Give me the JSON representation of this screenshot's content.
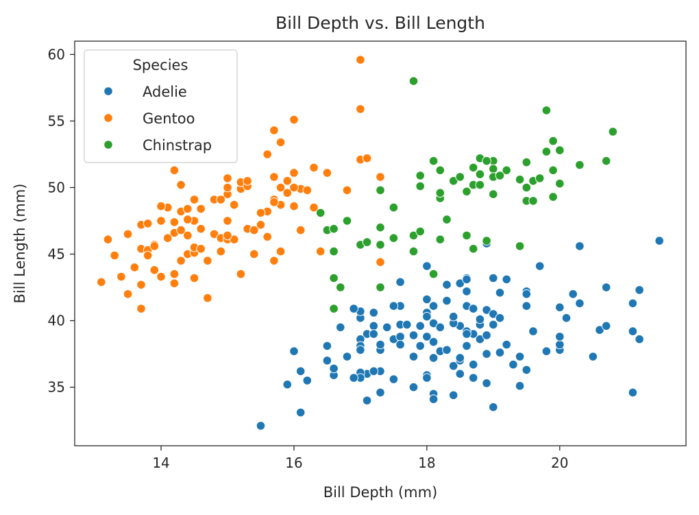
{
  "chart_data": {
    "type": "scatter",
    "title": "Bill Depth vs. Bill Length",
    "xlabel": "Bill Depth (mm)",
    "ylabel": "Bill Length (mm)",
    "xlim": [
      12.7,
      21.9
    ],
    "ylim": [
      30.6,
      61.0
    ],
    "xticks": [
      14,
      16,
      18,
      20
    ],
    "yticks": [
      35,
      40,
      45,
      50,
      55,
      60
    ],
    "grid": false,
    "legend": {
      "title": "Species",
      "placement": "top-left"
    },
    "series": [
      {
        "name": "Adelie",
        "color": "#1f77b4",
        "points": [
          [
            15.5,
            32.1
          ],
          [
            16.1,
            33.1
          ],
          [
            19.0,
            33.5
          ],
          [
            17.3,
            34.6
          ],
          [
            18.1,
            34.5
          ],
          [
            18.1,
            34.1
          ],
          [
            18.4,
            34.4
          ],
          [
            17.1,
            34.0
          ],
          [
            21.1,
            34.6
          ],
          [
            18.9,
            35.3
          ],
          [
            17.3,
            36.2
          ],
          [
            18.0,
            35.9
          ],
          [
            19.5,
            36.3
          ],
          [
            18.5,
            36.0
          ],
          [
            17.1,
            36.0
          ],
          [
            17.2,
            36.2
          ],
          [
            17.0,
            36.1
          ],
          [
            16.6,
            35.9
          ],
          [
            16.6,
            36.4
          ],
          [
            16.1,
            36.2
          ],
          [
            16.2,
            35.5
          ],
          [
            15.9,
            35.2
          ],
          [
            17.5,
            35.6
          ],
          [
            18.7,
            35.7
          ],
          [
            18.0,
            35.7
          ],
          [
            17.8,
            35.0
          ],
          [
            19.4,
            35.1
          ],
          [
            17.0,
            35.7
          ],
          [
            16.9,
            35.7
          ],
          [
            16.5,
            37.0
          ],
          [
            16.0,
            37.7
          ],
          [
            16.5,
            38.1
          ],
          [
            16.8,
            37.3
          ],
          [
            17.3,
            37.8
          ],
          [
            17.5,
            38.6
          ],
          [
            17.8,
            38.9
          ],
          [
            18.0,
            38.8
          ],
          [
            18.2,
            37.7
          ],
          [
            18.1,
            37.2
          ],
          [
            18.4,
            36.6
          ],
          [
            18.7,
            36.7
          ],
          [
            18.5,
            37.0
          ],
          [
            18.9,
            37.5
          ],
          [
            19.1,
            37.6
          ],
          [
            19.2,
            38.2
          ],
          [
            19.3,
            36.7
          ],
          [
            19.4,
            37.3
          ],
          [
            19.6,
            39.2
          ],
          [
            19.8,
            37.7
          ],
          [
            20.0,
            37.8
          ],
          [
            20.0,
            38.2
          ],
          [
            20.0,
            38.8
          ],
          [
            20.5,
            37.3
          ],
          [
            20.6,
            39.3
          ],
          [
            20.7,
            39.6
          ],
          [
            21.1,
            39.2
          ],
          [
            21.2,
            38.6
          ],
          [
            21.1,
            41.3
          ],
          [
            21.2,
            42.3
          ],
          [
            20.7,
            42.5
          ],
          [
            20.3,
            41.3
          ],
          [
            20.2,
            42.0
          ],
          [
            20.1,
            40.2
          ],
          [
            20.0,
            41.0
          ],
          [
            19.5,
            41.1
          ],
          [
            19.5,
            42.2
          ],
          [
            19.1,
            42.1
          ],
          [
            19.2,
            43.1
          ],
          [
            19.0,
            43.2
          ],
          [
            18.9,
            45.8
          ],
          [
            18.3,
            42.7
          ],
          [
            18.5,
            42.8
          ],
          [
            18.6,
            43.2
          ],
          [
            18.6,
            42.2
          ],
          [
            18.6,
            41.1
          ],
          [
            18.3,
            41.5
          ],
          [
            18.1,
            41.1
          ],
          [
            18.0,
            41.6
          ],
          [
            18.0,
            44.1
          ],
          [
            17.6,
            42.9
          ],
          [
            17.6,
            41.1
          ],
          [
            17.5,
            41.1
          ],
          [
            17.4,
            39.5
          ],
          [
            17.2,
            39.6
          ],
          [
            17.0,
            40.2
          ],
          [
            17.0,
            40.7
          ],
          [
            17.1,
            39.0
          ],
          [
            17.2,
            40.6
          ],
          [
            16.9,
            40.9
          ],
          [
            16.7,
            39.5
          ],
          [
            17.0,
            38.6
          ],
          [
            17.0,
            38.1
          ],
          [
            17.0,
            37.8
          ],
          [
            17.2,
            39.0
          ],
          [
            17.6,
            38.8
          ],
          [
            17.9,
            39.6
          ],
          [
            18.0,
            40.6
          ],
          [
            18.1,
            39.8
          ],
          [
            17.9,
            38.1
          ],
          [
            18.0,
            40.3
          ],
          [
            18.5,
            39.6
          ],
          [
            18.7,
            39.0
          ],
          [
            18.8,
            39.7
          ],
          [
            18.9,
            40.8
          ],
          [
            19.0,
            40.5
          ],
          [
            19.1,
            40.2
          ],
          [
            18.4,
            39.8
          ],
          [
            18.6,
            38.1
          ],
          [
            18.8,
            38.6
          ],
          [
            18.9,
            38.9
          ],
          [
            18.7,
            40.9
          ],
          [
            18.4,
            40.3
          ],
          [
            18.3,
            37.8
          ],
          [
            17.8,
            37.3
          ],
          [
            17.6,
            39.7
          ],
          [
            17.6,
            38.2
          ],
          [
            19.5,
            42.0
          ],
          [
            18.6,
            39.2
          ],
          [
            19.0,
            39.7
          ],
          [
            20.3,
            45.6
          ],
          [
            21.5,
            46.0
          ],
          [
            19.7,
            44.1
          ],
          [
            18.6,
            43.1
          ],
          [
            18.2,
            39.5
          ],
          [
            18.1,
            38.4
          ],
          [
            18.5,
            37.2
          ],
          [
            17.7,
            39.7
          ],
          [
            18.8,
            40.1
          ],
          [
            18.6,
            39.0
          ],
          [
            17.3,
            38.2
          ]
        ]
      },
      {
        "name": "Gentoo",
        "color": "#ff7f0e",
        "points": [
          [
            13.1,
            42.9
          ],
          [
            13.2,
            46.1
          ],
          [
            13.3,
            44.9
          ],
          [
            13.4,
            43.3
          ],
          [
            13.5,
            42.0
          ],
          [
            13.5,
            46.5
          ],
          [
            13.6,
            44.0
          ],
          [
            13.7,
            40.9
          ],
          [
            13.7,
            42.7
          ],
          [
            13.7,
            45.4
          ],
          [
            13.7,
            47.2
          ],
          [
            13.8,
            45.3
          ],
          [
            13.8,
            44.9
          ],
          [
            13.8,
            47.3
          ],
          [
            13.9,
            43.8
          ],
          [
            13.9,
            45.7
          ],
          [
            14.0,
            43.3
          ],
          [
            14.0,
            47.5
          ],
          [
            14.1,
            46.2
          ],
          [
            14.1,
            48.5
          ],
          [
            14.2,
            42.8
          ],
          [
            14.2,
            43.5
          ],
          [
            14.2,
            46.6
          ],
          [
            14.2,
            51.3
          ],
          [
            14.3,
            44.5
          ],
          [
            14.3,
            46.8
          ],
          [
            14.3,
            48.2
          ],
          [
            14.3,
            50.2
          ],
          [
            14.4,
            45.0
          ],
          [
            14.4,
            46.4
          ],
          [
            14.4,
            48.4
          ],
          [
            14.5,
            43.2
          ],
          [
            14.5,
            45.1
          ],
          [
            14.5,
            45.5
          ],
          [
            14.5,
            47.5
          ],
          [
            14.5,
            49.1
          ],
          [
            14.6,
            45.4
          ],
          [
            14.6,
            46.9
          ],
          [
            14.6,
            48.4
          ],
          [
            14.7,
            41.7
          ],
          [
            14.7,
            44.5
          ],
          [
            14.8,
            46.5
          ],
          [
            14.8,
            49.1
          ],
          [
            14.9,
            45.2
          ],
          [
            14.9,
            46.2
          ],
          [
            15.0,
            46.1
          ],
          [
            15.0,
            47.5
          ],
          [
            15.0,
            49.5
          ],
          [
            15.0,
            50.0
          ],
          [
            15.0,
            50.7
          ],
          [
            15.1,
            46.1
          ],
          [
            15.1,
            48.7
          ],
          [
            15.2,
            43.5
          ],
          [
            15.2,
            49.9
          ],
          [
            15.2,
            50.4
          ],
          [
            15.3,
            46.9
          ],
          [
            15.3,
            50.1
          ],
          [
            15.3,
            50.5
          ],
          [
            15.4,
            45.0
          ],
          [
            15.4,
            46.8
          ],
          [
            15.5,
            47.2
          ],
          [
            15.6,
            46.3
          ],
          [
            15.6,
            48.2
          ],
          [
            15.6,
            52.5
          ],
          [
            15.7,
            44.5
          ],
          [
            15.7,
            49.1
          ],
          [
            15.7,
            50.8
          ],
          [
            15.7,
            54.3
          ],
          [
            15.8,
            45.2
          ],
          [
            15.8,
            48.7
          ],
          [
            15.8,
            50.0
          ],
          [
            15.8,
            53.4
          ],
          [
            15.9,
            49.6
          ],
          [
            15.9,
            50.5
          ],
          [
            16.0,
            48.6
          ],
          [
            16.0,
            51.1
          ],
          [
            16.0,
            55.1
          ],
          [
            16.1,
            46.8
          ],
          [
            16.1,
            49.9
          ],
          [
            16.2,
            49.8
          ],
          [
            16.3,
            48.5
          ],
          [
            16.3,
            51.5
          ],
          [
            16.4,
            45.2
          ],
          [
            16.5,
            51.1
          ],
          [
            16.8,
            49.8
          ],
          [
            17.0,
            52.1
          ],
          [
            17.0,
            55.9
          ],
          [
            17.0,
            59.6
          ],
          [
            17.1,
            52.2
          ],
          [
            17.3,
            44.4
          ],
          [
            17.3,
            50.8
          ],
          [
            14.0,
            48.6
          ],
          [
            14.4,
            47.6
          ],
          [
            14.9,
            49.1
          ],
          [
            15.0,
            46.4
          ],
          [
            15.5,
            48.1
          ],
          [
            15.7,
            48.9
          ],
          [
            16.0,
            50.0
          ],
          [
            13.9,
            45.6
          ],
          [
            14.2,
            47.4
          ]
        ]
      },
      {
        "name": "Chinstrap",
        "color": "#2ca02c",
        "points": [
          [
            16.4,
            48.1
          ],
          [
            16.5,
            46.8
          ],
          [
            16.6,
            46.9
          ],
          [
            16.6,
            45.2
          ],
          [
            16.6,
            43.2
          ],
          [
            16.6,
            40.9
          ],
          [
            16.7,
            42.5
          ],
          [
            16.8,
            47.5
          ],
          [
            17.0,
            45.7
          ],
          [
            17.1,
            45.9
          ],
          [
            17.3,
            42.5
          ],
          [
            17.3,
            45.7
          ],
          [
            17.3,
            47.0
          ],
          [
            17.3,
            49.8
          ],
          [
            17.5,
            46.2
          ],
          [
            17.5,
            48.5
          ],
          [
            17.8,
            58.0
          ],
          [
            17.8,
            46.4
          ],
          [
            17.8,
            45.2
          ],
          [
            17.9,
            46.7
          ],
          [
            17.9,
            50.1
          ],
          [
            17.9,
            50.9
          ],
          [
            18.1,
            43.5
          ],
          [
            18.1,
            52.0
          ],
          [
            18.2,
            49.2
          ],
          [
            18.2,
            49.6
          ],
          [
            18.2,
            51.3
          ],
          [
            18.2,
            46.1
          ],
          [
            18.3,
            47.6
          ],
          [
            18.4,
            50.5
          ],
          [
            18.5,
            50.8
          ],
          [
            18.6,
            49.7
          ],
          [
            18.6,
            46.4
          ],
          [
            18.7,
            45.4
          ],
          [
            18.7,
            50.2
          ],
          [
            18.7,
            51.5
          ],
          [
            18.8,
            52.2
          ],
          [
            18.8,
            51.0
          ],
          [
            18.8,
            50.2
          ],
          [
            18.9,
            46.0
          ],
          [
            19.0,
            52.0
          ],
          [
            19.0,
            51.4
          ],
          [
            19.0,
            50.8
          ],
          [
            19.0,
            49.5
          ],
          [
            19.2,
            51.3
          ],
          [
            19.4,
            45.6
          ],
          [
            19.4,
            50.6
          ],
          [
            19.5,
            51.9
          ],
          [
            19.5,
            50.0
          ],
          [
            19.5,
            49.0
          ],
          [
            19.6,
            49.0
          ],
          [
            19.6,
            50.5
          ],
          [
            19.7,
            50.7
          ],
          [
            19.8,
            52.7
          ],
          [
            19.8,
            55.8
          ],
          [
            19.9,
            53.5
          ],
          [
            19.9,
            49.3
          ],
          [
            19.9,
            51.3
          ],
          [
            20.0,
            52.8
          ],
          [
            20.0,
            50.3
          ],
          [
            20.3,
            51.7
          ],
          [
            20.7,
            52.0
          ],
          [
            20.8,
            54.2
          ],
          [
            19.1,
            50.9
          ],
          [
            18.9,
            52.0
          ]
        ]
      }
    ]
  }
}
